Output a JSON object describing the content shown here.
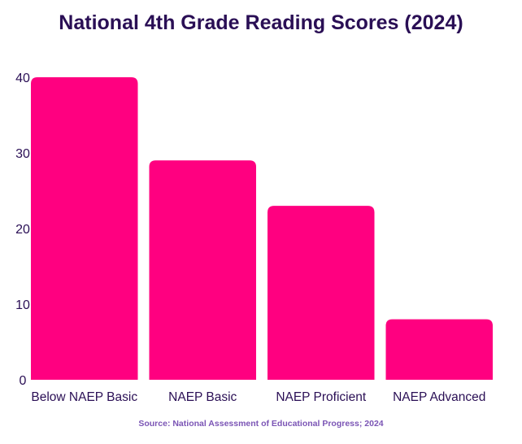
{
  "chart_data": {
    "type": "bar",
    "title": "National 4th Grade Reading Scores (2024)",
    "categories": [
      "Below NAEP Basic",
      "NAEP Basic",
      "NAEP Proficient",
      "NAEP Advanced"
    ],
    "values": [
      40,
      29,
      23,
      8
    ],
    "yticks": [
      0,
      10,
      20,
      30,
      40
    ],
    "ylim": [
      0,
      40
    ],
    "xlabel": "",
    "ylabel": "",
    "grid": false,
    "bar_color": "#ff0080",
    "source": "Source: National Assessment of Educational Progress; 2024"
  }
}
